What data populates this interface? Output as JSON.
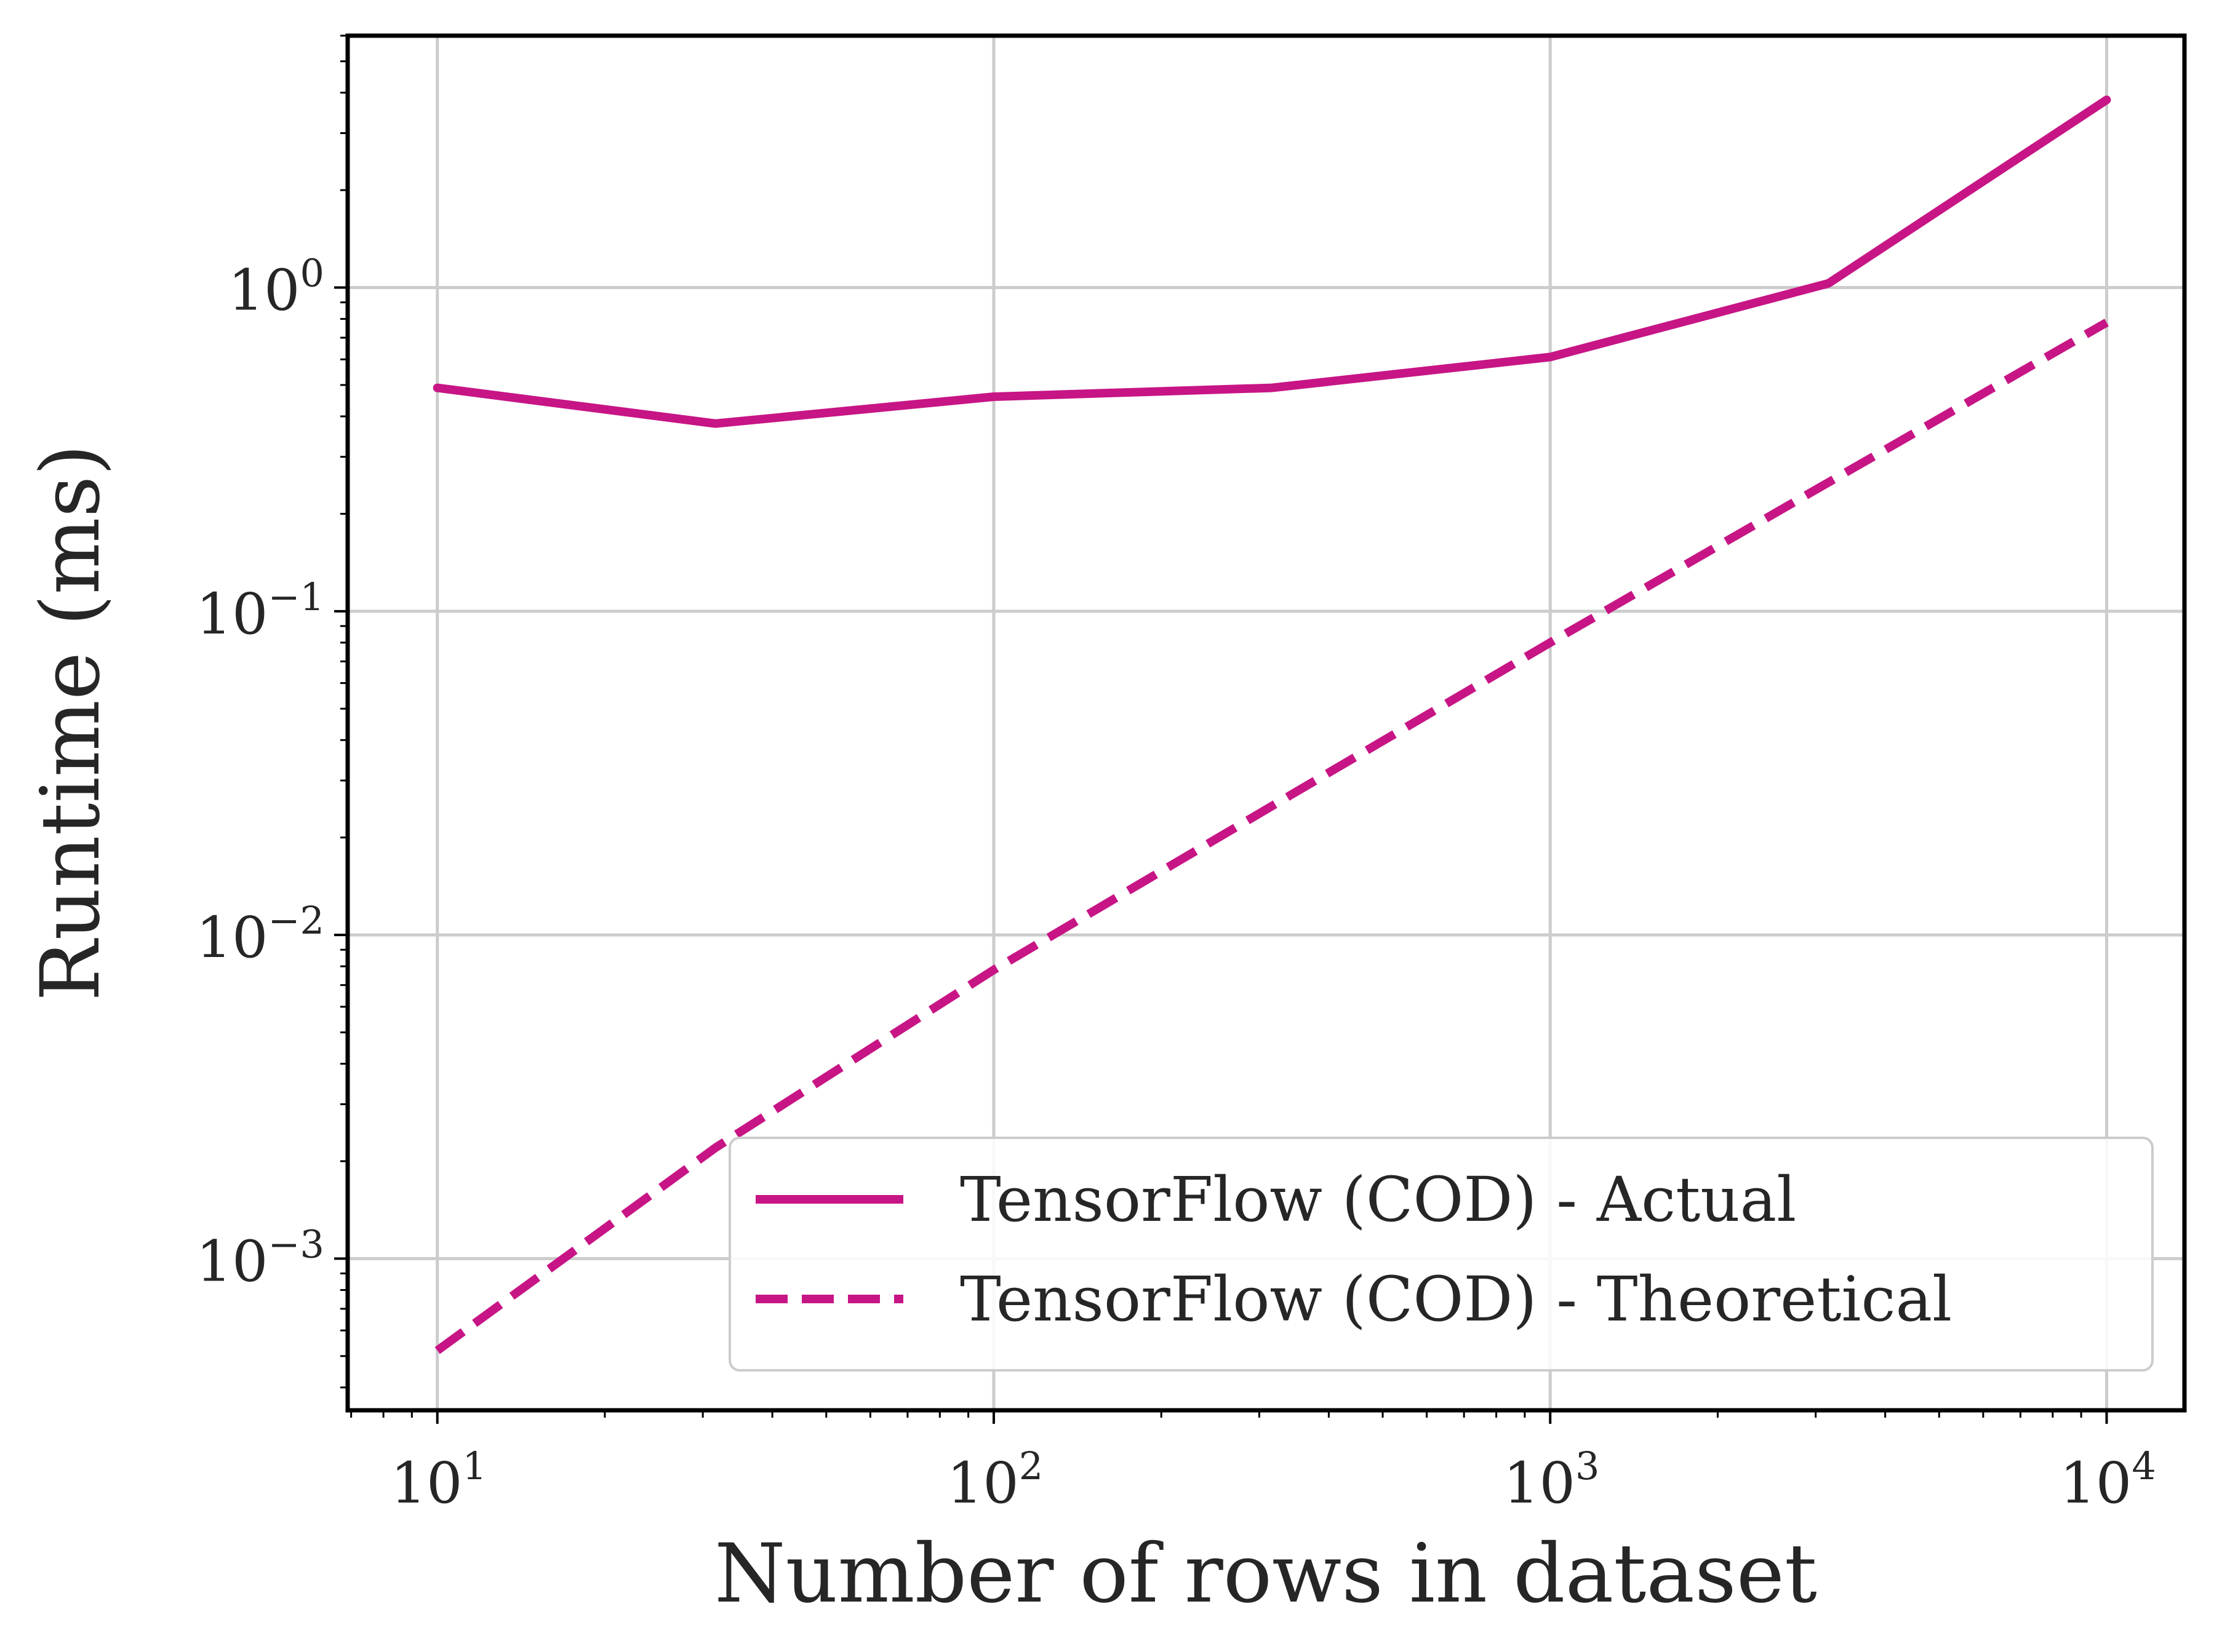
{
  "chart_data": {
    "type": "line",
    "title": "",
    "xlabel": "Number of rows in dataset",
    "ylabel": "Runtime (ms)",
    "xscale": "log",
    "yscale": "log",
    "xlim": [
      6.9,
      13800
    ],
    "ylim": [
      0.00034,
      6.0
    ],
    "grid": true,
    "legend_position": "lower-right",
    "x_ticks": [
      {
        "base": "10",
        "exp": "1",
        "value": 10
      },
      {
        "base": "10",
        "exp": "2",
        "value": 100
      },
      {
        "base": "10",
        "exp": "3",
        "value": 1000
      },
      {
        "base": "10",
        "exp": "4",
        "value": 10000
      }
    ],
    "y_ticks": [
      {
        "base": "10",
        "exp": "0",
        "value": 1
      },
      {
        "base": "10",
        "exp": "−1",
        "value": 0.1
      },
      {
        "base": "10",
        "exp": "−2",
        "value": 0.01
      },
      {
        "base": "10",
        "exp": "−3",
        "value": 0.001
      }
    ],
    "x": [
      10,
      31.6,
      100,
      316,
      1000,
      3162,
      10000
    ],
    "series": [
      {
        "name": "TensorFlow (COD) - Actual",
        "color": "#c71585",
        "style": "solid",
        "values": [
          0.49,
          0.38,
          0.46,
          0.49,
          0.61,
          1.03,
          3.8
        ]
      },
      {
        "name": "TensorFlow (COD) - Theoretical",
        "color": "#c71585",
        "style": "dashed",
        "values": [
          0.00052,
          0.0022,
          0.0078,
          0.025,
          0.08,
          0.25,
          0.78
        ]
      }
    ]
  }
}
